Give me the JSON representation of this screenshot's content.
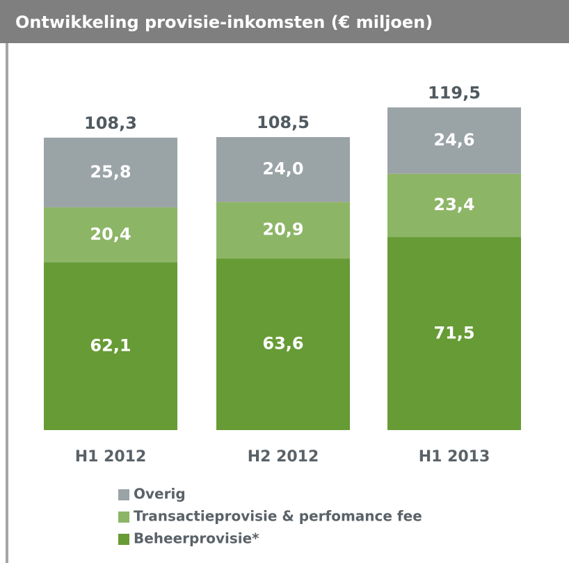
{
  "chart_data": {
    "type": "stacked_bar",
    "title": "Ontwikkeling provisie-inkomsten (€ miljoen)",
    "categories": [
      "H1 2012",
      "H2 2012",
      "H1 2013"
    ],
    "series": [
      {
        "name": "Beheerprovisie*",
        "color": "#679b35",
        "values": [
          62.1,
          63.6,
          71.5
        ],
        "value_labels": [
          "62,1",
          "63,6",
          "71,5"
        ]
      },
      {
        "name": "Transactieprovisie & perfomance fee",
        "color": "#8db566",
        "values": [
          20.4,
          20.9,
          23.4
        ],
        "value_labels": [
          "20,4",
          "20,9",
          "23,4"
        ]
      },
      {
        "name": "Overig",
        "color": "#9aa3a6",
        "values": [
          25.8,
          24.0,
          24.6
        ],
        "value_labels": [
          "25,8",
          "24,0",
          "24,6"
        ]
      }
    ],
    "totals": [
      108.3,
      108.5,
      119.5
    ],
    "total_labels": [
      "108,3",
      "108,5",
      "119,5"
    ]
  }
}
